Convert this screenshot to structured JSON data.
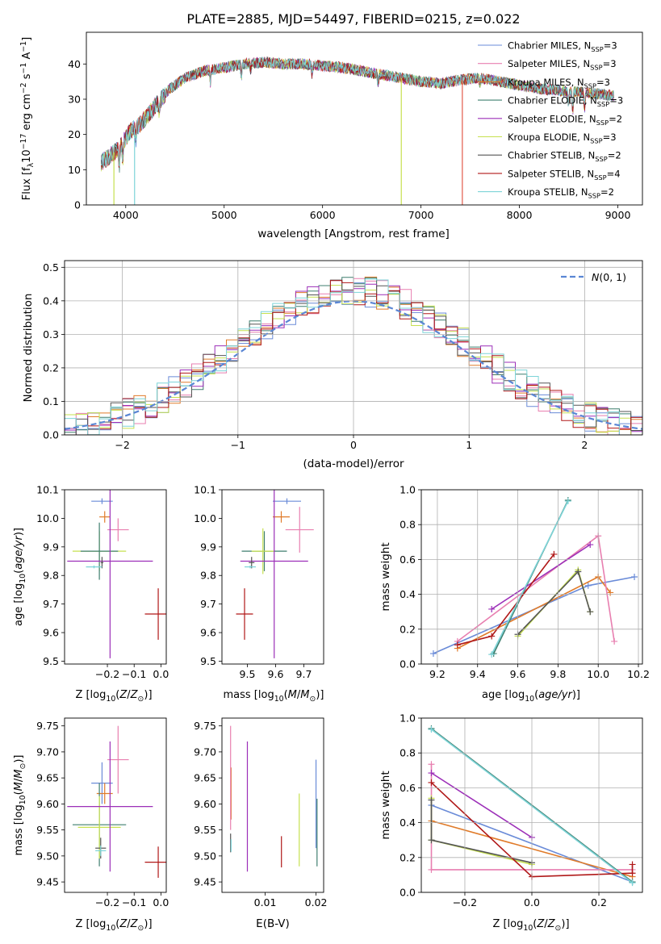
{
  "title": "PLATE=2885, MJD=54497, FIBERID=0215, z=0.022",
  "chart_data": [
    {
      "id": "spectrum",
      "type": "line",
      "xlabel": "wavelength [Angstrom, rest frame]",
      "ylabel": "Flux [f_λ10^-17 erg cm^-2 s^-1 A^-1]",
      "xlim": [
        3600,
        9250
      ],
      "ylim": [
        0,
        49
      ],
      "xticks": [
        4000,
        5000,
        6000,
        7000,
        8000,
        9000
      ],
      "yticks": [
        0,
        10,
        20,
        30,
        40
      ],
      "legend_position": "top-right",
      "series": [
        {
          "name": "Chabrier MILES, N_SSP=3",
          "color": "#6a8bd8"
        },
        {
          "name": "Salpeter MILES, N_SSP=3",
          "color": "#e87fb0"
        },
        {
          "name": "Kroupa MILES, N_SSP=3",
          "color": "#e07b2a"
        },
        {
          "name": "Chabrier ELODIE, N_SSP=3",
          "color": "#3f7f6f"
        },
        {
          "name": "Salpeter ELODIE, N_SSP=2",
          "color": "#9c2fb8"
        },
        {
          "name": "Kroupa ELODIE, N_SSP=3",
          "color": "#c6e04f"
        },
        {
          "name": "Chabrier STELIB, N_SSP=2",
          "color": "#555555"
        },
        {
          "name": "Salpeter STELIB, N_SSP=4",
          "color": "#b01818"
        },
        {
          "name": "Kroupa STELIB, N_SSP=2",
          "color": "#7dd4d8"
        }
      ],
      "continuum": {
        "x": [
          3750,
          3850,
          3950,
          4050,
          4150,
          4300,
          4450,
          4600,
          4800,
          5000,
          5200,
          5400,
          5600,
          5800,
          6000,
          6200,
          6400,
          6600,
          6800,
          7000,
          7200,
          7400,
          7600,
          7800,
          8000,
          8200,
          8400,
          8600,
          8800,
          8960
        ],
        "y": [
          12,
          14,
          17,
          21,
          23,
          28,
          33,
          36,
          38,
          39,
          40,
          40.5,
          40,
          40,
          39.5,
          39,
          38,
          37,
          36,
          35,
          34.5,
          35.5,
          36,
          35,
          34,
          33,
          32.5,
          32,
          31.5,
          31
        ]
      },
      "drops": [
        {
          "x": 3880,
          "to": 0,
          "color": "#c6e04f"
        },
        {
          "x": 4090,
          "to": 0,
          "color": "#7dd4d8"
        },
        {
          "x": 6800,
          "to": 0,
          "color": "#c6e04f"
        },
        {
          "x": 7420,
          "to": 0,
          "color": "#e05a4a"
        }
      ]
    },
    {
      "id": "residuals",
      "type": "histogram",
      "xlabel": "(data-model)/error",
      "ylabel": "Normed distribution",
      "xlim": [
        -2.5,
        2.5
      ],
      "ylim": [
        0,
        0.52
      ],
      "xticks": [
        -2,
        -1,
        0,
        1,
        2
      ],
      "yticks": [
        0.0,
        0.1,
        0.2,
        0.3,
        0.4,
        0.5
      ],
      "grid": true,
      "legend_position": "top-right",
      "legend": "N(0,1)",
      "reference_curve": {
        "type": "gaussian",
        "mu": 0,
        "sigma": 1,
        "color": "#5a86d4"
      },
      "bin_width": 0.1,
      "series_colors": [
        "#6a8bd8",
        "#e87fb0",
        "#e07b2a",
        "#3f7f6f",
        "#9c2fb8",
        "#c6e04f",
        "#555555",
        "#b01818",
        "#7dd4d8"
      ]
    },
    {
      "id": "age_vs_Z",
      "type": "errorbar",
      "xlabel": "Z [log10(Z/Z_sun)]",
      "ylabel": "age [log10(age/yr)]",
      "xlim": [
        -0.36,
        0.02
      ],
      "ylim": [
        9.49,
        10.1
      ],
      "xticks": [
        -0.2,
        -0.1,
        0.0
      ],
      "yticks": [
        9.5,
        9.6,
        9.7,
        9.8,
        9.9,
        10.0,
        10.1
      ],
      "points": [
        {
          "x": -0.22,
          "y": 10.06,
          "xerr": 0.04,
          "yerr": 0.01,
          "color": "#6a8bd8"
        },
        {
          "x": -0.21,
          "y": 10.005,
          "xerr": 0.02,
          "yerr": 0.02,
          "color": "#e07b2a"
        },
        {
          "x": -0.16,
          "y": 9.96,
          "xerr": 0.04,
          "yerr": 0.04,
          "color": "#e87fb0"
        },
        {
          "x": -0.23,
          "y": 9.885,
          "xerr": 0.1,
          "yerr": 0.07,
          "color": "#c6e04f"
        },
        {
          "x": -0.23,
          "y": 9.885,
          "xerr": 0.07,
          "yerr": 0.1,
          "color": "#3f7f6f"
        },
        {
          "x": -0.19,
          "y": 9.85,
          "xerr": 0.16,
          "yerr": 0.34,
          "color": "#9c2fb8"
        },
        {
          "x": -0.22,
          "y": 9.845,
          "xerr": 0.005,
          "yerr": 0.02,
          "color": "#555555"
        },
        {
          "x": -0.25,
          "y": 9.83,
          "xerr": 0.03,
          "yerr": 0.005,
          "color": "#7dd4d8"
        },
        {
          "x": -0.01,
          "y": 9.665,
          "xerr": 0.05,
          "yerr": 0.09,
          "color": "#b01818"
        }
      ]
    },
    {
      "id": "age_vs_mass",
      "type": "errorbar",
      "xlabel": "mass [log10(M/M_sun)]",
      "ylabel": "",
      "xlim": [
        9.41,
        9.77
      ],
      "ylim": [
        9.49,
        10.1
      ],
      "xticks": [
        9.5,
        9.6,
        9.7
      ],
      "yticks": [
        9.5,
        9.6,
        9.7,
        9.8,
        9.9,
        10.0,
        10.1
      ],
      "points": [
        {
          "x": 9.64,
          "y": 10.06,
          "xerr": 0.05,
          "yerr": 0.01,
          "color": "#6a8bd8"
        },
        {
          "x": 9.62,
          "y": 10.005,
          "xerr": 0.03,
          "yerr": 0.02,
          "color": "#e07b2a"
        },
        {
          "x": 9.685,
          "y": 9.96,
          "xerr": 0.05,
          "yerr": 0.08,
          "color": "#e87fb0"
        },
        {
          "x": 9.56,
          "y": 9.885,
          "xerr": 0.08,
          "yerr": 0.07,
          "color": "#3f7f6f"
        },
        {
          "x": 9.555,
          "y": 9.885,
          "xerr": 0.04,
          "yerr": 0.08,
          "color": "#c6e04f"
        },
        {
          "x": 9.595,
          "y": 9.85,
          "xerr": 0.12,
          "yerr": 0.34,
          "color": "#9c2fb8"
        },
        {
          "x": 9.515,
          "y": 9.845,
          "xerr": 0.01,
          "yerr": 0.02,
          "color": "#555555"
        },
        {
          "x": 9.51,
          "y": 9.83,
          "xerr": 0.02,
          "yerr": 0.005,
          "color": "#7dd4d8"
        },
        {
          "x": 9.49,
          "y": 9.665,
          "xerr": 0.03,
          "yerr": 0.09,
          "color": "#b01818"
        }
      ]
    },
    {
      "id": "mass_weight_vs_age",
      "type": "line",
      "xlabel": "age [log10(age/yr)]",
      "ylabel": "mass weight",
      "xlim": [
        9.12,
        10.22
      ],
      "ylim": [
        0,
        1.0
      ],
      "xticks": [
        9.2,
        9.4,
        9.6,
        9.8,
        10.0,
        10.2
      ],
      "yticks": [
        0.0,
        0.2,
        0.4,
        0.6,
        0.8,
        1.0
      ],
      "grid": true,
      "series": [
        {
          "color": "#6a8bd8",
          "x": [
            9.18,
            9.95,
            10.18
          ],
          "y": [
            0.06,
            0.45,
            0.5
          ]
        },
        {
          "color": "#e07b2a",
          "x": [
            9.3,
            10.0,
            10.06
          ],
          "y": [
            0.09,
            0.5,
            0.41
          ]
        },
        {
          "color": "#e87fb0",
          "x": [
            9.3,
            10.0,
            10.08
          ],
          "y": [
            0.13,
            0.735,
            0.13
          ]
        },
        {
          "color": "#3f7f6f",
          "x": [
            9.48,
            9.85
          ],
          "y": [
            0.06,
            0.94
          ]
        },
        {
          "color": "#9c2fb8",
          "x": [
            9.47,
            9.96
          ],
          "y": [
            0.315,
            0.685
          ]
        },
        {
          "color": "#c6e04f",
          "x": [
            9.6,
            9.9,
            9.96
          ],
          "y": [
            0.16,
            0.54,
            0.3
          ]
        },
        {
          "color": "#555555",
          "x": [
            9.6,
            9.9,
            9.96
          ],
          "y": [
            0.17,
            0.53,
            0.3
          ]
        },
        {
          "color": "#b01818",
          "x": [
            9.3,
            9.47,
            9.78
          ],
          "y": [
            0.11,
            0.16,
            0.63
          ]
        },
        {
          "color": "#7dd4d8",
          "x": [
            9.47,
            9.85
          ],
          "y": [
            0.055,
            0.935
          ]
        }
      ]
    },
    {
      "id": "mass_vs_Z",
      "type": "errorbar",
      "xlabel": "Z [log10(Z/Z_sun)]",
      "ylabel": "mass [log10(M/M_sun)]",
      "xlim": [
        -0.36,
        0.02
      ],
      "ylim": [
        9.43,
        9.765
      ],
      "xticks": [
        -0.2,
        -0.1,
        0.0
      ],
      "yticks": [
        9.45,
        9.5,
        9.55,
        9.6,
        9.65,
        9.7,
        9.75
      ],
      "points": [
        {
          "x": -0.22,
          "y": 9.64,
          "xerr": 0.04,
          "yerr": 0.04,
          "color": "#6a8bd8"
        },
        {
          "x": -0.21,
          "y": 9.62,
          "xerr": 0.03,
          "yerr": 0.02,
          "color": "#e07b2a"
        },
        {
          "x": -0.16,
          "y": 9.685,
          "xerr": 0.04,
          "yerr": 0.065,
          "color": "#e87fb0"
        },
        {
          "x": -0.23,
          "y": 9.56,
          "xerr": 0.1,
          "yerr": 0.08,
          "color": "#3f7f6f"
        },
        {
          "x": -0.23,
          "y": 9.555,
          "xerr": 0.08,
          "yerr": 0.06,
          "color": "#c6e04f"
        },
        {
          "x": -0.19,
          "y": 9.595,
          "xerr": 0.16,
          "yerr": 0.125,
          "color": "#9c2fb8"
        },
        {
          "x": -0.225,
          "y": 9.515,
          "xerr": 0.02,
          "yerr": 0.02,
          "color": "#555555"
        },
        {
          "x": -0.225,
          "y": 9.51,
          "xerr": 0.02,
          "yerr": 0.01,
          "color": "#7dd4d8"
        },
        {
          "x": -0.01,
          "y": 9.488,
          "xerr": 0.05,
          "yerr": 0.03,
          "color": "#b01818"
        }
      ]
    },
    {
      "id": "mass_vs_ebv",
      "type": "errorbar",
      "xlabel": "E(B-V)",
      "ylabel": "",
      "xlim": [
        0.0015,
        0.0215
      ],
      "ylim": [
        9.43,
        9.765
      ],
      "xticks": [
        0.01,
        0.02
      ],
      "yticks": [
        9.45,
        9.5,
        9.55,
        9.6,
        9.65,
        9.7,
        9.75
      ],
      "points": [
        {
          "x": 0.02,
          "y": 9.6,
          "xerr": 0,
          "yerr": 0.085,
          "color": "#6a8bd8"
        },
        {
          "x": 0.0033,
          "y": 9.62,
          "xerr": 0,
          "yerr": 0.05,
          "color": "#e07b2a"
        },
        {
          "x": 0.0032,
          "y": 9.65,
          "xerr": 0,
          "yerr": 0.1,
          "color": "#e87fb0"
        },
        {
          "x": 0.0202,
          "y": 9.545,
          "xerr": 0,
          "yerr": 0.065,
          "color": "#3f7f6f"
        },
        {
          "x": 0.0167,
          "y": 9.55,
          "xerr": 0,
          "yerr": 0.07,
          "color": "#c6e04f"
        },
        {
          "x": 0.0065,
          "y": 9.595,
          "xerr": 0,
          "yerr": 0.125,
          "color": "#9c2fb8"
        },
        {
          "x": 0.0032,
          "y": 9.525,
          "xerr": 0,
          "yerr": 0.018,
          "color": "#555555"
        },
        {
          "x": 0.0033,
          "y": 9.52,
          "xerr": 0,
          "yerr": 0.012,
          "color": "#7dd4d8"
        },
        {
          "x": 0.0132,
          "y": 9.508,
          "xerr": 0,
          "yerr": 0.03,
          "color": "#b01818"
        }
      ]
    },
    {
      "id": "mass_weight_vs_Z",
      "type": "line",
      "xlabel": "Z [log10(Z/Z_sun)]",
      "ylabel": "mass weight",
      "xlim": [
        -0.33,
        0.33
      ],
      "ylim": [
        0,
        1.0
      ],
      "xticks": [
        -0.2,
        0.0,
        0.2
      ],
      "yticks": [
        0.0,
        0.2,
        0.4,
        0.6,
        0.8,
        1.0
      ],
      "grid": true,
      "series": [
        {
          "color": "#6a8bd8",
          "x": [
            -0.3,
            0.3
          ],
          "y": [
            0.5,
            0.06
          ]
        },
        {
          "color": "#e07b2a",
          "x": [
            -0.3,
            0.3
          ],
          "y": [
            0.41,
            0.09
          ]
        },
        {
          "color": "#e87fb0",
          "x": [
            -0.3,
            -0.3,
            0.3
          ],
          "y": [
            0.735,
            0.13,
            0.13
          ]
        },
        {
          "color": "#3f7f6f",
          "x": [
            -0.3,
            0.3
          ],
          "y": [
            0.94,
            0.06
          ]
        },
        {
          "color": "#9c2fb8",
          "x": [
            -0.3,
            0.0
          ],
          "y": [
            0.685,
            0.315
          ]
        },
        {
          "color": "#c6e04f",
          "x": [
            -0.3,
            -0.3,
            0.0
          ],
          "y": [
            0.54,
            0.3,
            0.16
          ]
        },
        {
          "color": "#555555",
          "x": [
            -0.3,
            -0.3,
            0.0
          ],
          "y": [
            0.53,
            0.3,
            0.17
          ]
        },
        {
          "color": "#b01818",
          "x": [
            -0.3,
            0.0,
            0.3,
            0.3
          ],
          "y": [
            0.63,
            0.09,
            0.11,
            0.16
          ]
        },
        {
          "color": "#7dd4d8",
          "x": [
            -0.3,
            0.3
          ],
          "y": [
            0.935,
            0.055
          ]
        }
      ]
    }
  ]
}
